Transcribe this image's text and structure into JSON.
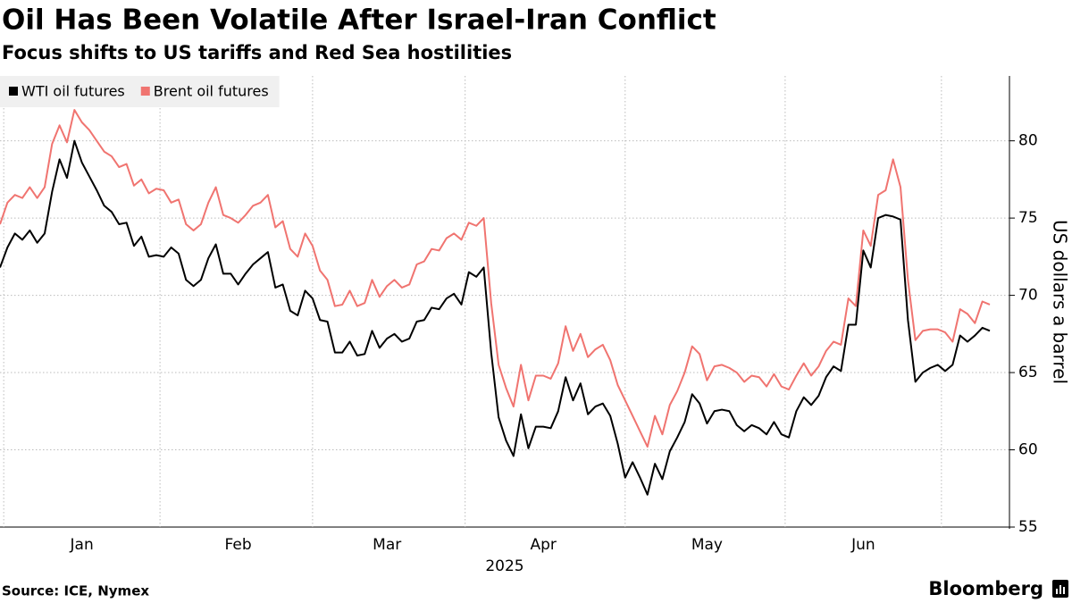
{
  "chart_data": {
    "type": "line",
    "title": "Oil Has Been Volatile After Israel-Iran Conflict",
    "subtitle": "Focus shifts to US tariffs and Red Sea hostilities",
    "ylabel": "US dollars a barrel",
    "xlabel": "2025",
    "source": "Source: ICE, Nymex",
    "logo": "Bloomberg",
    "legend": "top-left",
    "grid": true,
    "ylim": [
      55,
      84.2
    ],
    "yticks": [
      55,
      60,
      65,
      70,
      75,
      80
    ],
    "categories": [
      null,
      null,
      null,
      null,
      null,
      null,
      null,
      null,
      null,
      null,
      null,
      "Jan",
      null,
      null,
      null,
      null,
      null,
      null,
      null,
      null,
      null,
      null,
      null,
      null,
      null,
      null,
      null,
      null,
      null,
      null,
      null,
      null,
      "Feb",
      null,
      null,
      null,
      null,
      null,
      null,
      null,
      null,
      null,
      null,
      null,
      null,
      null,
      null,
      null,
      null,
      null,
      null,
      null,
      "Mar",
      null,
      null,
      null,
      null,
      null,
      null,
      null,
      null,
      null,
      null,
      null,
      null,
      null,
      null,
      null,
      null,
      null,
      null,
      null,
      null,
      "Apr",
      null,
      null,
      null,
      null,
      null,
      null,
      null,
      null,
      null,
      null,
      null,
      null,
      null,
      null,
      null,
      null,
      null,
      null,
      null,
      null,
      null,
      "May",
      null,
      null,
      null,
      null,
      null,
      null,
      null,
      null,
      null,
      null,
      null,
      null,
      null,
      null,
      null,
      null,
      null,
      null,
      null,
      null,
      "Jun",
      null,
      null,
      null,
      null,
      null,
      null,
      null,
      null,
      null,
      null,
      null,
      null,
      null,
      null,
      null,
      null,
      null
    ],
    "series": [
      {
        "name": "WTI oil futures",
        "color": "#000000",
        "values": [
          71.8,
          73.1,
          74,
          73.6,
          74.2,
          73.4,
          74,
          76.7,
          78.8,
          77.6,
          80,
          78.6,
          77.7,
          76.8,
          75.8,
          75.4,
          74.6,
          74.7,
          73.2,
          73.8,
          72.5,
          72.6,
          72.5,
          73.1,
          72.7,
          71,
          70.6,
          71,
          72.4,
          73.3,
          71.4,
          71.4,
          70.7,
          71.4,
          72,
          72.4,
          72.8,
          70.5,
          70.7,
          69,
          68.7,
          70.3,
          69.8,
          68.4,
          68.3,
          66.3,
          66.3,
          67,
          66.1,
          66.2,
          67.7,
          66.6,
          67.2,
          67.5,
          67,
          67.2,
          68.3,
          68.4,
          69.2,
          69.1,
          69.8,
          70.1,
          69.4,
          71.5,
          71.2,
          71.8,
          66.3,
          62.1,
          60.6,
          59.6,
          62.3,
          60.1,
          61.5,
          61.5,
          61.4,
          62.5,
          64.7,
          63.2,
          64.3,
          62.3,
          62.8,
          63,
          62.2,
          60.4,
          58.2,
          59.2,
          58.2,
          57.1,
          59.1,
          58.1,
          59.9,
          60.8,
          61.8,
          63.6,
          63,
          61.7,
          62.5,
          62.6,
          62.5,
          61.6,
          61.2,
          61.6,
          61.4,
          61,
          61.8,
          61,
          60.8,
          62.5,
          63.4,
          62.9,
          63.5,
          64.7,
          65.4,
          65.1,
          68.1,
          68.1,
          72.9,
          71.8,
          75,
          75.2,
          75.1,
          74.9,
          68.4,
          64.4,
          65,
          65.3,
          65.5,
          65.1,
          65.5,
          67.4,
          67,
          67.4,
          67.9,
          67.7
        ]
      },
      {
        "name": "Brent oil futures",
        "color": "#f07470",
        "values": [
          74.6,
          76,
          76.5,
          76.3,
          77,
          76.3,
          77,
          79.8,
          81,
          79.9,
          82,
          81.2,
          80.7,
          80,
          79.3,
          79,
          78.3,
          78.5,
          77.1,
          77.5,
          76.6,
          76.9,
          76.8,
          76,
          76.2,
          74.6,
          74.2,
          74.6,
          76,
          77,
          75.2,
          75,
          74.7,
          75.2,
          75.8,
          76,
          76.5,
          74.4,
          74.8,
          73,
          72.5,
          74,
          73.2,
          71.6,
          71,
          69.3,
          69.4,
          70.3,
          69.3,
          69.5,
          71,
          69.9,
          70.6,
          71,
          70.5,
          70.7,
          72,
          72.2,
          73,
          72.9,
          73.7,
          74,
          73.6,
          74.7,
          74.5,
          75,
          69.5,
          65.5,
          64,
          62.8,
          65.5,
          63.2,
          64.8,
          64.8,
          64.6,
          65.6,
          68,
          66.4,
          67.5,
          66,
          66.5,
          66.8,
          65.8,
          64.2,
          63.2,
          62.2,
          61.2,
          60.2,
          62.2,
          61,
          62.9,
          63.8,
          65,
          66.7,
          66.2,
          64.5,
          65.4,
          65.5,
          65.3,
          65,
          64.4,
          64.8,
          64.7,
          64.1,
          64.9,
          64.1,
          63.9,
          64.8,
          65.6,
          64.8,
          65.4,
          66.4,
          67,
          66.8,
          69.8,
          69.3,
          74.2,
          73.2,
          76.5,
          76.8,
          78.8,
          77,
          71,
          67.1,
          67.7,
          67.8,
          67.8,
          67.6,
          67,
          69.1,
          68.8,
          68.2,
          69.6,
          69.4
        ]
      }
    ]
  }
}
